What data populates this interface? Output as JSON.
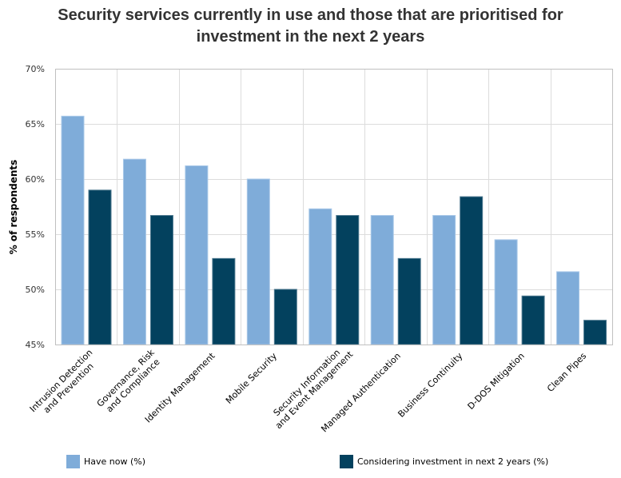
{
  "chart_data": {
    "type": "bar",
    "title": "Security services currently in use and those that are prioritised for investment in the next 2 years",
    "title_lines": [
      "Security services currently in use and those that are prioritised for",
      "investment in the next 2 years"
    ],
    "xlabel": "",
    "ylabel": "% of respondents",
    "ylim": [
      45,
      70
    ],
    "yticks": [
      45,
      50,
      55,
      60,
      65,
      70
    ],
    "ytick_labels": [
      "45%",
      "50%",
      "55%",
      "60%",
      "65%",
      "70%"
    ],
    "grid": true,
    "legend_position": "bottom",
    "categories": [
      [
        "Intrusion Detection",
        "and Prevention"
      ],
      [
        "Governance, Risk",
        "and Compliance"
      ],
      [
        "Identity Management"
      ],
      [
        "Mobile Security"
      ],
      [
        "Security Information",
        "and Event Management"
      ],
      [
        "Managed Authentication"
      ],
      [
        "Business Continuity"
      ],
      [
        "D-DOS Mitigation"
      ],
      [
        "Clean Pipes"
      ]
    ],
    "series": [
      {
        "name": "Have now (%)",
        "color": "#7FACD9",
        "values": [
          65.7,
          61.8,
          61.2,
          60.0,
          57.3,
          56.7,
          56.7,
          54.5,
          51.6
        ]
      },
      {
        "name": "Considering investment in next 2 years (%)",
        "color": "#03415E",
        "values": [
          59.0,
          56.7,
          52.8,
          50.0,
          56.7,
          52.8,
          58.4,
          49.4,
          47.2
        ]
      }
    ]
  }
}
